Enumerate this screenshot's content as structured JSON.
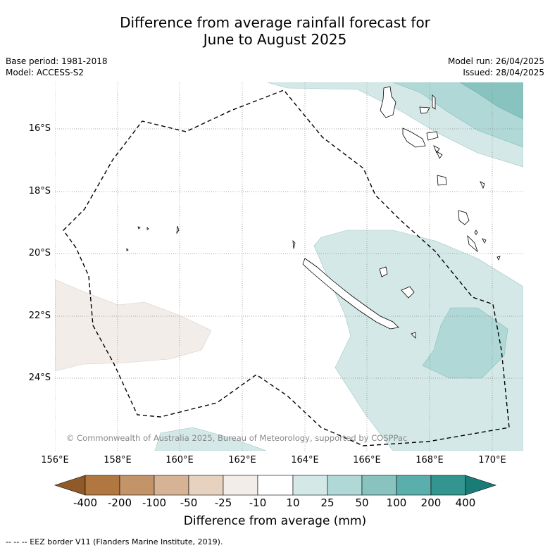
{
  "title_line1": "Difference from average rainfall forecast for",
  "title_line2": "June to August 2025",
  "meta": {
    "base_period": "Base period: 1981-2018",
    "model": "Model: ACCESS-S2",
    "model_run": "Model run: 26/04/2025",
    "issued": "Issued: 28/04/2025"
  },
  "copyright": "© Commonwealth of Australia 2025, Bureau of Meteorology, supported by COSPPac",
  "lat_ticks": [
    "16°S",
    "18°S",
    "20°S",
    "22°S",
    "24°S"
  ],
  "lon_ticks": [
    "156°E",
    "158°E",
    "160°E",
    "162°E",
    "164°E",
    "166°E",
    "168°E",
    "170°E"
  ],
  "colorbar": {
    "labels": [
      "-400",
      "-200",
      "-100",
      "-50",
      "-25",
      "-10",
      "10",
      "25",
      "50",
      "100",
      "200",
      "400"
    ],
    "colors": [
      "#8f5a28",
      "#b07840",
      "#c29468",
      "#d5b394",
      "#e6d2bf",
      "#f2ede8",
      "#ffffff",
      "#d4e9e7",
      "#b0d8d6",
      "#88c3c0",
      "#5aaeab",
      "#33958f",
      "#1a7c77"
    ],
    "title": "Difference from average (mm)"
  },
  "footnote": "-- -- -- EEZ border V11 (Flanders Marine Institute, 2019)."
}
